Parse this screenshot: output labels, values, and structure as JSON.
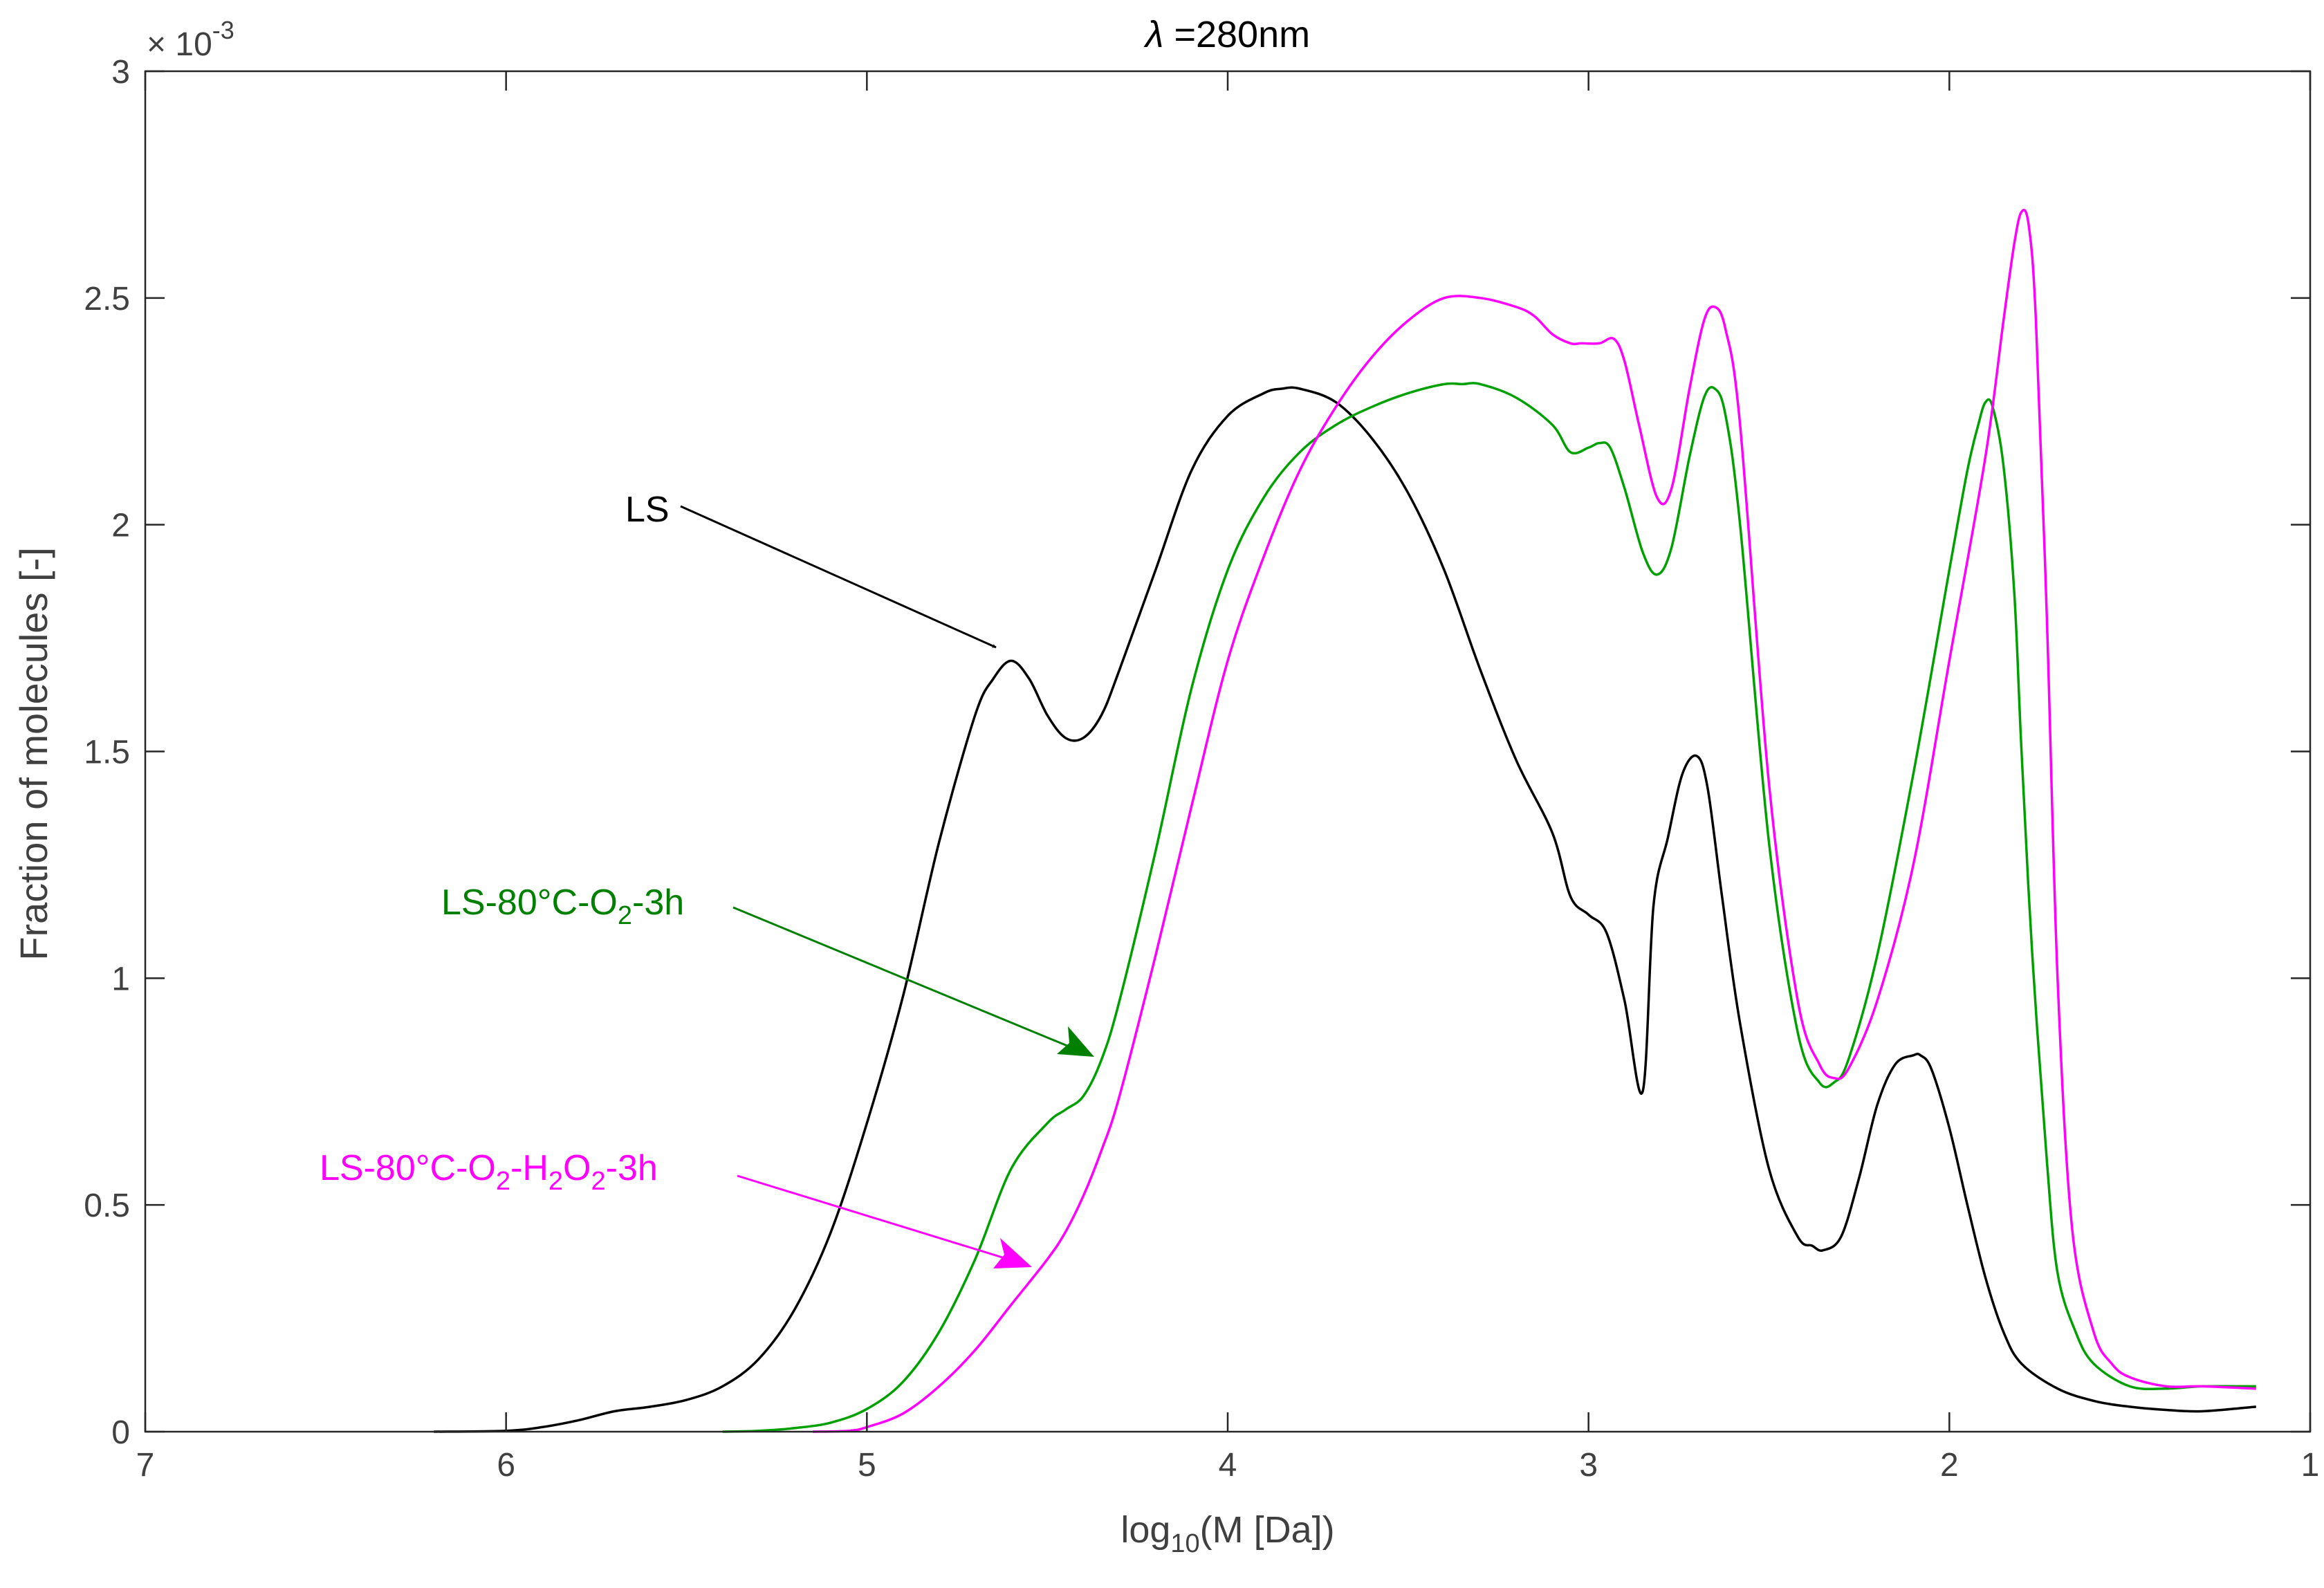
{
  "chart_data": {
    "type": "line",
    "title_symbol": "λ",
    "title_rest": " =280nm",
    "xlabel_pre": "log",
    "xlabel_sub": "10",
    "xlabel_post": "(M [Da])",
    "ylabel": "Fraction of molecules [-]",
    "y_multiplier_base": "× 10",
    "y_multiplier_exp": "-3",
    "xlim": [
      1,
      7
    ],
    "x_reversed": true,
    "ylim": [
      0,
      0.003
    ],
    "x_ticks": [
      7,
      6,
      5,
      4,
      3,
      2,
      1
    ],
    "x_tick_labels": [
      "7",
      "6",
      "5",
      "4",
      "3",
      "2",
      "1"
    ],
    "y_ticks": [
      0,
      0.0005,
      0.001,
      0.0015,
      0.002,
      0.0025,
      0.003
    ],
    "y_tick_labels": [
      "0",
      "0.5",
      "1",
      "1.5",
      "2",
      "2.5",
      "3"
    ],
    "grid": false,
    "colors": {
      "LS": "#000000",
      "O2": "#00a000",
      "H2O2": "#ff00ff",
      "arrow_O2": "#008000"
    },
    "series": [
      {
        "key": "LS",
        "x": [
          6.2,
          6.0,
          5.9,
          5.8,
          5.7,
          5.6,
          5.5,
          5.4,
          5.3,
          5.2,
          5.1,
          5.0,
          4.9,
          4.8,
          4.7,
          4.65,
          4.6,
          4.55,
          4.5,
          4.45,
          4.4,
          4.35,
          4.3,
          4.2,
          4.1,
          4.0,
          3.9,
          3.85,
          3.8,
          3.7,
          3.6,
          3.5,
          3.4,
          3.3,
          3.2,
          3.1,
          3.05,
          3.0,
          2.95,
          2.9,
          2.85,
          2.82,
          2.78,
          2.74,
          2.7,
          2.67,
          2.63,
          2.58,
          2.5,
          2.42,
          2.38,
          2.35,
          2.3,
          2.25,
          2.2,
          2.15,
          2.1,
          2.08,
          2.05,
          2.0,
          1.95,
          1.9,
          1.85,
          1.8,
          1.7,
          1.6,
          1.5,
          1.4,
          1.3,
          1.15
        ],
        "y": [
          0.0,
          2e-06,
          1e-05,
          2.5e-05,
          4.5e-05,
          5.5e-05,
          7e-05,
          0.0001,
          0.00016,
          0.00027,
          0.00044,
          0.00068,
          0.00096,
          0.0013,
          0.00158,
          0.00166,
          0.0017,
          0.00166,
          0.00158,
          0.00153,
          0.00153,
          0.00158,
          0.00168,
          0.0019,
          0.00212,
          0.00224,
          0.00229,
          0.0023,
          0.0023,
          0.00227,
          0.00219,
          0.00207,
          0.0019,
          0.00168,
          0.00148,
          0.00132,
          0.00118,
          0.00114,
          0.0011,
          0.00095,
          0.00075,
          0.00116,
          0.00131,
          0.00145,
          0.00149,
          0.00142,
          0.00118,
          0.0009,
          0.00058,
          0.00043,
          0.00041,
          0.0004,
          0.00043,
          0.00056,
          0.00072,
          0.00081,
          0.00083,
          0.00083,
          0.0008,
          0.00067,
          0.0005,
          0.00034,
          0.00022,
          0.00015,
          9.5e-05,
          6.8e-05,
          5.5e-05,
          4.8e-05,
          4.5e-05,
          5.5e-05
        ]
      },
      {
        "key": "O2",
        "x": [
          5.4,
          5.3,
          5.2,
          5.1,
          5.0,
          4.9,
          4.8,
          4.7,
          4.6,
          4.5,
          4.45,
          4.4,
          4.35,
          4.3,
          4.2,
          4.1,
          4.0,
          3.9,
          3.8,
          3.7,
          3.6,
          3.5,
          3.4,
          3.35,
          3.3,
          3.2,
          3.1,
          3.05,
          3.0,
          2.97,
          2.94,
          2.9,
          2.85,
          2.81,
          2.77,
          2.72,
          2.68,
          2.65,
          2.62,
          2.58,
          2.5,
          2.42,
          2.36,
          2.32,
          2.28,
          2.2,
          2.1,
          2.0,
          1.95,
          1.92,
          1.9,
          1.88,
          1.85,
          1.82,
          1.8,
          1.77,
          1.73,
          1.7,
          1.65,
          1.6,
          1.5,
          1.4,
          1.3,
          1.15
        ],
        "y": [
          0.0,
          2e-06,
          8e-06,
          2e-05,
          5e-05,
          0.00011,
          0.00022,
          0.00038,
          0.00058,
          0.00068,
          0.00071,
          0.00074,
          0.00082,
          0.00095,
          0.00128,
          0.00164,
          0.0019,
          0.00206,
          0.00216,
          0.00222,
          0.00226,
          0.00229,
          0.00231,
          0.00231,
          0.00231,
          0.00228,
          0.00222,
          0.00216,
          0.00217,
          0.00218,
          0.00217,
          0.00208,
          0.00194,
          0.00189,
          0.00195,
          0.00215,
          0.00228,
          0.0023,
          0.00224,
          0.002,
          0.0013,
          0.00088,
          0.00077,
          0.00077,
          0.00082,
          0.00105,
          0.00145,
          0.0019,
          0.00212,
          0.00222,
          0.00227,
          0.00226,
          0.00213,
          0.00185,
          0.0015,
          0.00105,
          0.0006,
          0.00035,
          0.00022,
          0.00015,
          0.0001,
          9.5e-05,
          0.0001,
          0.0001
        ]
      },
      {
        "key": "H2O2",
        "x": [
          5.15,
          5.05,
          5.0,
          4.9,
          4.8,
          4.7,
          4.6,
          4.5,
          4.45,
          4.4,
          4.35,
          4.3,
          4.2,
          4.1,
          4.0,
          3.9,
          3.8,
          3.7,
          3.6,
          3.5,
          3.4,
          3.3,
          3.2,
          3.15,
          3.1,
          3.05,
          3.02,
          2.97,
          2.93,
          2.9,
          2.86,
          2.81,
          2.77,
          2.72,
          2.68,
          2.65,
          2.62,
          2.58,
          2.5,
          2.42,
          2.36,
          2.32,
          2.28,
          2.2,
          2.1,
          2.0,
          1.9,
          1.85,
          1.82,
          1.8,
          1.78,
          1.76,
          1.73,
          1.7,
          1.66,
          1.6,
          1.55,
          1.5,
          1.4,
          1.3,
          1.15
        ],
        "y": [
          0.0,
          2e-06,
          1e-05,
          4e-05,
          0.0001,
          0.00018,
          0.00028,
          0.00038,
          0.00044,
          0.00052,
          0.00062,
          0.00074,
          0.00105,
          0.00138,
          0.0017,
          0.00193,
          0.00212,
          0.00226,
          0.00237,
          0.00245,
          0.0025,
          0.0025,
          0.00248,
          0.00246,
          0.00242,
          0.0024,
          0.0024,
          0.0024,
          0.00241,
          0.00236,
          0.00222,
          0.00206,
          0.00208,
          0.0023,
          0.00245,
          0.00248,
          0.00243,
          0.00222,
          0.00143,
          0.00095,
          0.00081,
          0.00078,
          0.0008,
          0.00095,
          0.00125,
          0.0017,
          0.00215,
          0.00245,
          0.00262,
          0.00269,
          0.00266,
          0.00245,
          0.0018,
          0.001,
          0.00045,
          0.00022,
          0.00015,
          0.00012,
          0.0001,
          0.0001,
          9.5e-05
        ]
      }
    ],
    "annotations": [
      {
        "key": "LS",
        "text": "LS"
      },
      {
        "key": "O2",
        "parts": [
          "LS-80°C-O",
          "2",
          "-3h"
        ]
      },
      {
        "key": "H2O2",
        "parts": [
          "LS-80°C-O",
          "2",
          "-H",
          "2",
          "O",
          "2",
          "-3h"
        ]
      }
    ]
  }
}
